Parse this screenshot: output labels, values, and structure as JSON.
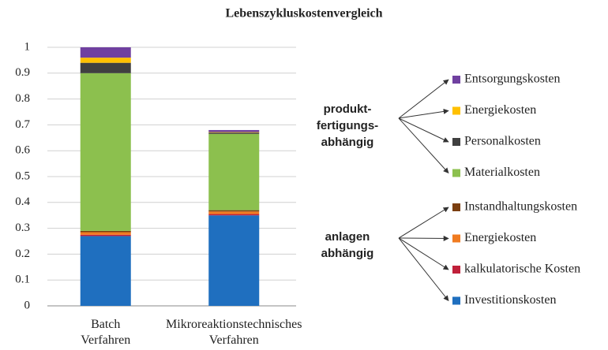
{
  "chart_data": {
    "type": "stacked_bar",
    "title": "Lebenszykluskostenvergleich",
    "categories": [
      "Batch Verfahren",
      "Mikroreaktionstechnisches Verfahren"
    ],
    "series": [
      {
        "name": "Investitionskosten",
        "color": "#1f6fbf",
        "values": [
          0.27,
          0.35
        ]
      },
      {
        "name": "kalkulatorische Kosten",
        "color": "#c0203a",
        "values": [
          0.005,
          0.005
        ]
      },
      {
        "name": "Energiekosten",
        "color": "#f07b20",
        "values": [
          0.01,
          0.01
        ]
      },
      {
        "name": "Instandhaltungskosten",
        "color": "#7b3f10",
        "values": [
          0.005,
          0.005
        ]
      },
      {
        "name": "Materialkosten",
        "color": "#8cc04e",
        "values": [
          0.61,
          0.295
        ]
      },
      {
        "name": "Personalkosten",
        "color": "#404040",
        "values": [
          0.04,
          0.005
        ]
      },
      {
        "name": "Energiekosten",
        "color": "#ffc000",
        "values": [
          0.02,
          0.002
        ]
      },
      {
        "name": "Entsorgungskosten",
        "color": "#7040a0",
        "values": [
          0.04,
          0.008
        ]
      }
    ],
    "group_labels": [
      "produkt-fertigungs-abhängig",
      "anlagen abhängig"
    ],
    "ylim": [
      0,
      1
    ],
    "yticks": [
      0,
      0.1,
      0.2,
      0.3,
      0.4,
      0.5,
      0.6,
      0.7,
      0.8,
      0.9,
      1
    ],
    "grid": true
  }
}
